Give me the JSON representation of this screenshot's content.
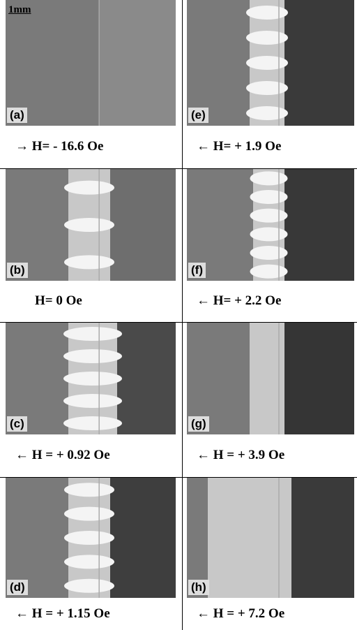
{
  "scale_bar": "1mm",
  "panels": [
    {
      "label": "(a)",
      "caption": "→ H= - 16.6 Oe"
    },
    {
      "label": "(b)",
      "caption": "H= 0 Oe"
    },
    {
      "label": "(c)",
      "caption": "← H = + 0.92 Oe"
    },
    {
      "label": "(d)",
      "caption": "← H = + 1.15 Oe"
    },
    {
      "label": "(e)",
      "caption": "← H= + 1.9 Oe"
    },
    {
      "label": "(f)",
      "caption": "← H= + 2.2 Oe"
    },
    {
      "label": "(g)",
      "caption": "← H = + 3.9 Oe"
    },
    {
      "label": "(h)",
      "caption": "← H = + 7.2 Oe"
    }
  ]
}
